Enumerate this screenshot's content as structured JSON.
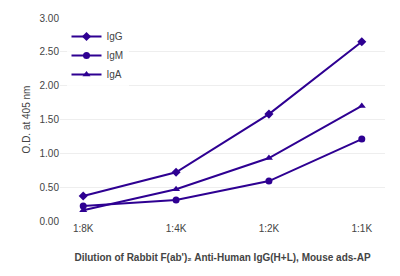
{
  "chart_data": {
    "type": "line",
    "categories": [
      "1:8K",
      "1:4K",
      "1:2K",
      "1:1K"
    ],
    "series": [
      {
        "name": "IgG",
        "color": "#2e0092",
        "marker": "diamond",
        "values": [
          0.37,
          0.72,
          1.58,
          2.65
        ]
      },
      {
        "name": "IgM",
        "color": "#2e0092",
        "marker": "circle",
        "values": [
          0.22,
          0.31,
          0.59,
          1.21
        ]
      },
      {
        "name": "IgA",
        "color": "#2e0092",
        "marker": "triangle-up",
        "values": [
          0.16,
          0.47,
          0.93,
          1.7
        ]
      }
    ],
    "xlabel": "Dilution of Rabbit F(ab')₂ Anti-Human IgG(H+L), Mouse ads-AP",
    "ylabel": "O.D. at 405 nm",
    "ylim": [
      0.0,
      3.0
    ],
    "yticks": [
      {
        "value": 0.0,
        "label": "0.00"
      },
      {
        "value": 0.5,
        "label": "0.50"
      },
      {
        "value": 1.0,
        "label": "1.00"
      },
      {
        "value": 1.5,
        "label": "1.50"
      },
      {
        "value": 2.0,
        "label": "2.00"
      },
      {
        "value": 2.5,
        "label": "2.50"
      },
      {
        "value": 3.0,
        "label": "3.00"
      }
    ],
    "grid": true,
    "legend": "upper left"
  }
}
